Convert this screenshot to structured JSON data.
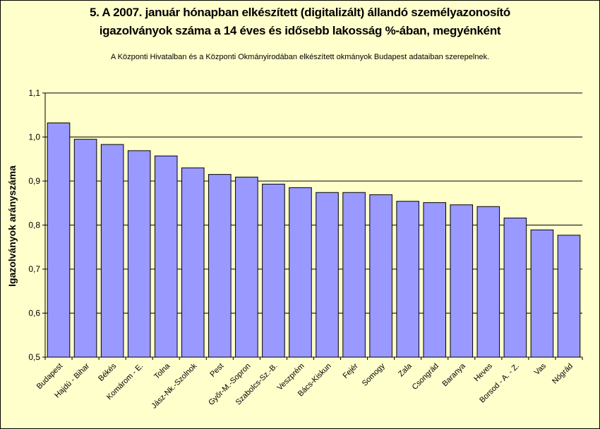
{
  "chart_data": {
    "type": "bar",
    "title_line1": "5. A 2007. január hónapban elkészített (digitalizált) állandó személyazonosító",
    "title_line2": "igazolványok száma a 14 éves és idősebb lakosság %-ában, megyénként",
    "subtitle": "A  Központi Hivatalban és a Központi Okmányirodában elkészített  okmányok Budapest adataiban szerepelnek.",
    "ylabel": "Igazolványok arányszáma",
    "xlabel": "",
    "ylim": [
      0.5,
      1.1
    ],
    "yticks": [
      "0,5",
      "0,6",
      "0,7",
      "0,8",
      "0,9",
      "1,0",
      "1,1"
    ],
    "grid": true,
    "bar_color": "#9999ff",
    "background_color": "#ffffcc",
    "categories": [
      "Budapest",
      "Hajdú - Bihar",
      "Békés",
      "Komárom - E.",
      "Tolna",
      "Jász-Nk.-Szolnok",
      "Pest",
      "Győr-M.-Sopron",
      "Szabolcs-Sz.-B.",
      "Veszprém",
      "Bács-Kiskun",
      "Fejér",
      "Somogy",
      "Zala",
      "Csongrád",
      "Baranya",
      "Heves",
      "Borsod - A. - Z.",
      "Vas",
      "Nógrád"
    ],
    "values": [
      1.032,
      0.995,
      0.983,
      0.969,
      0.957,
      0.93,
      0.915,
      0.909,
      0.893,
      0.885,
      0.874,
      0.874,
      0.869,
      0.854,
      0.851,
      0.846,
      0.842,
      0.816,
      0.789,
      0.777
    ]
  }
}
